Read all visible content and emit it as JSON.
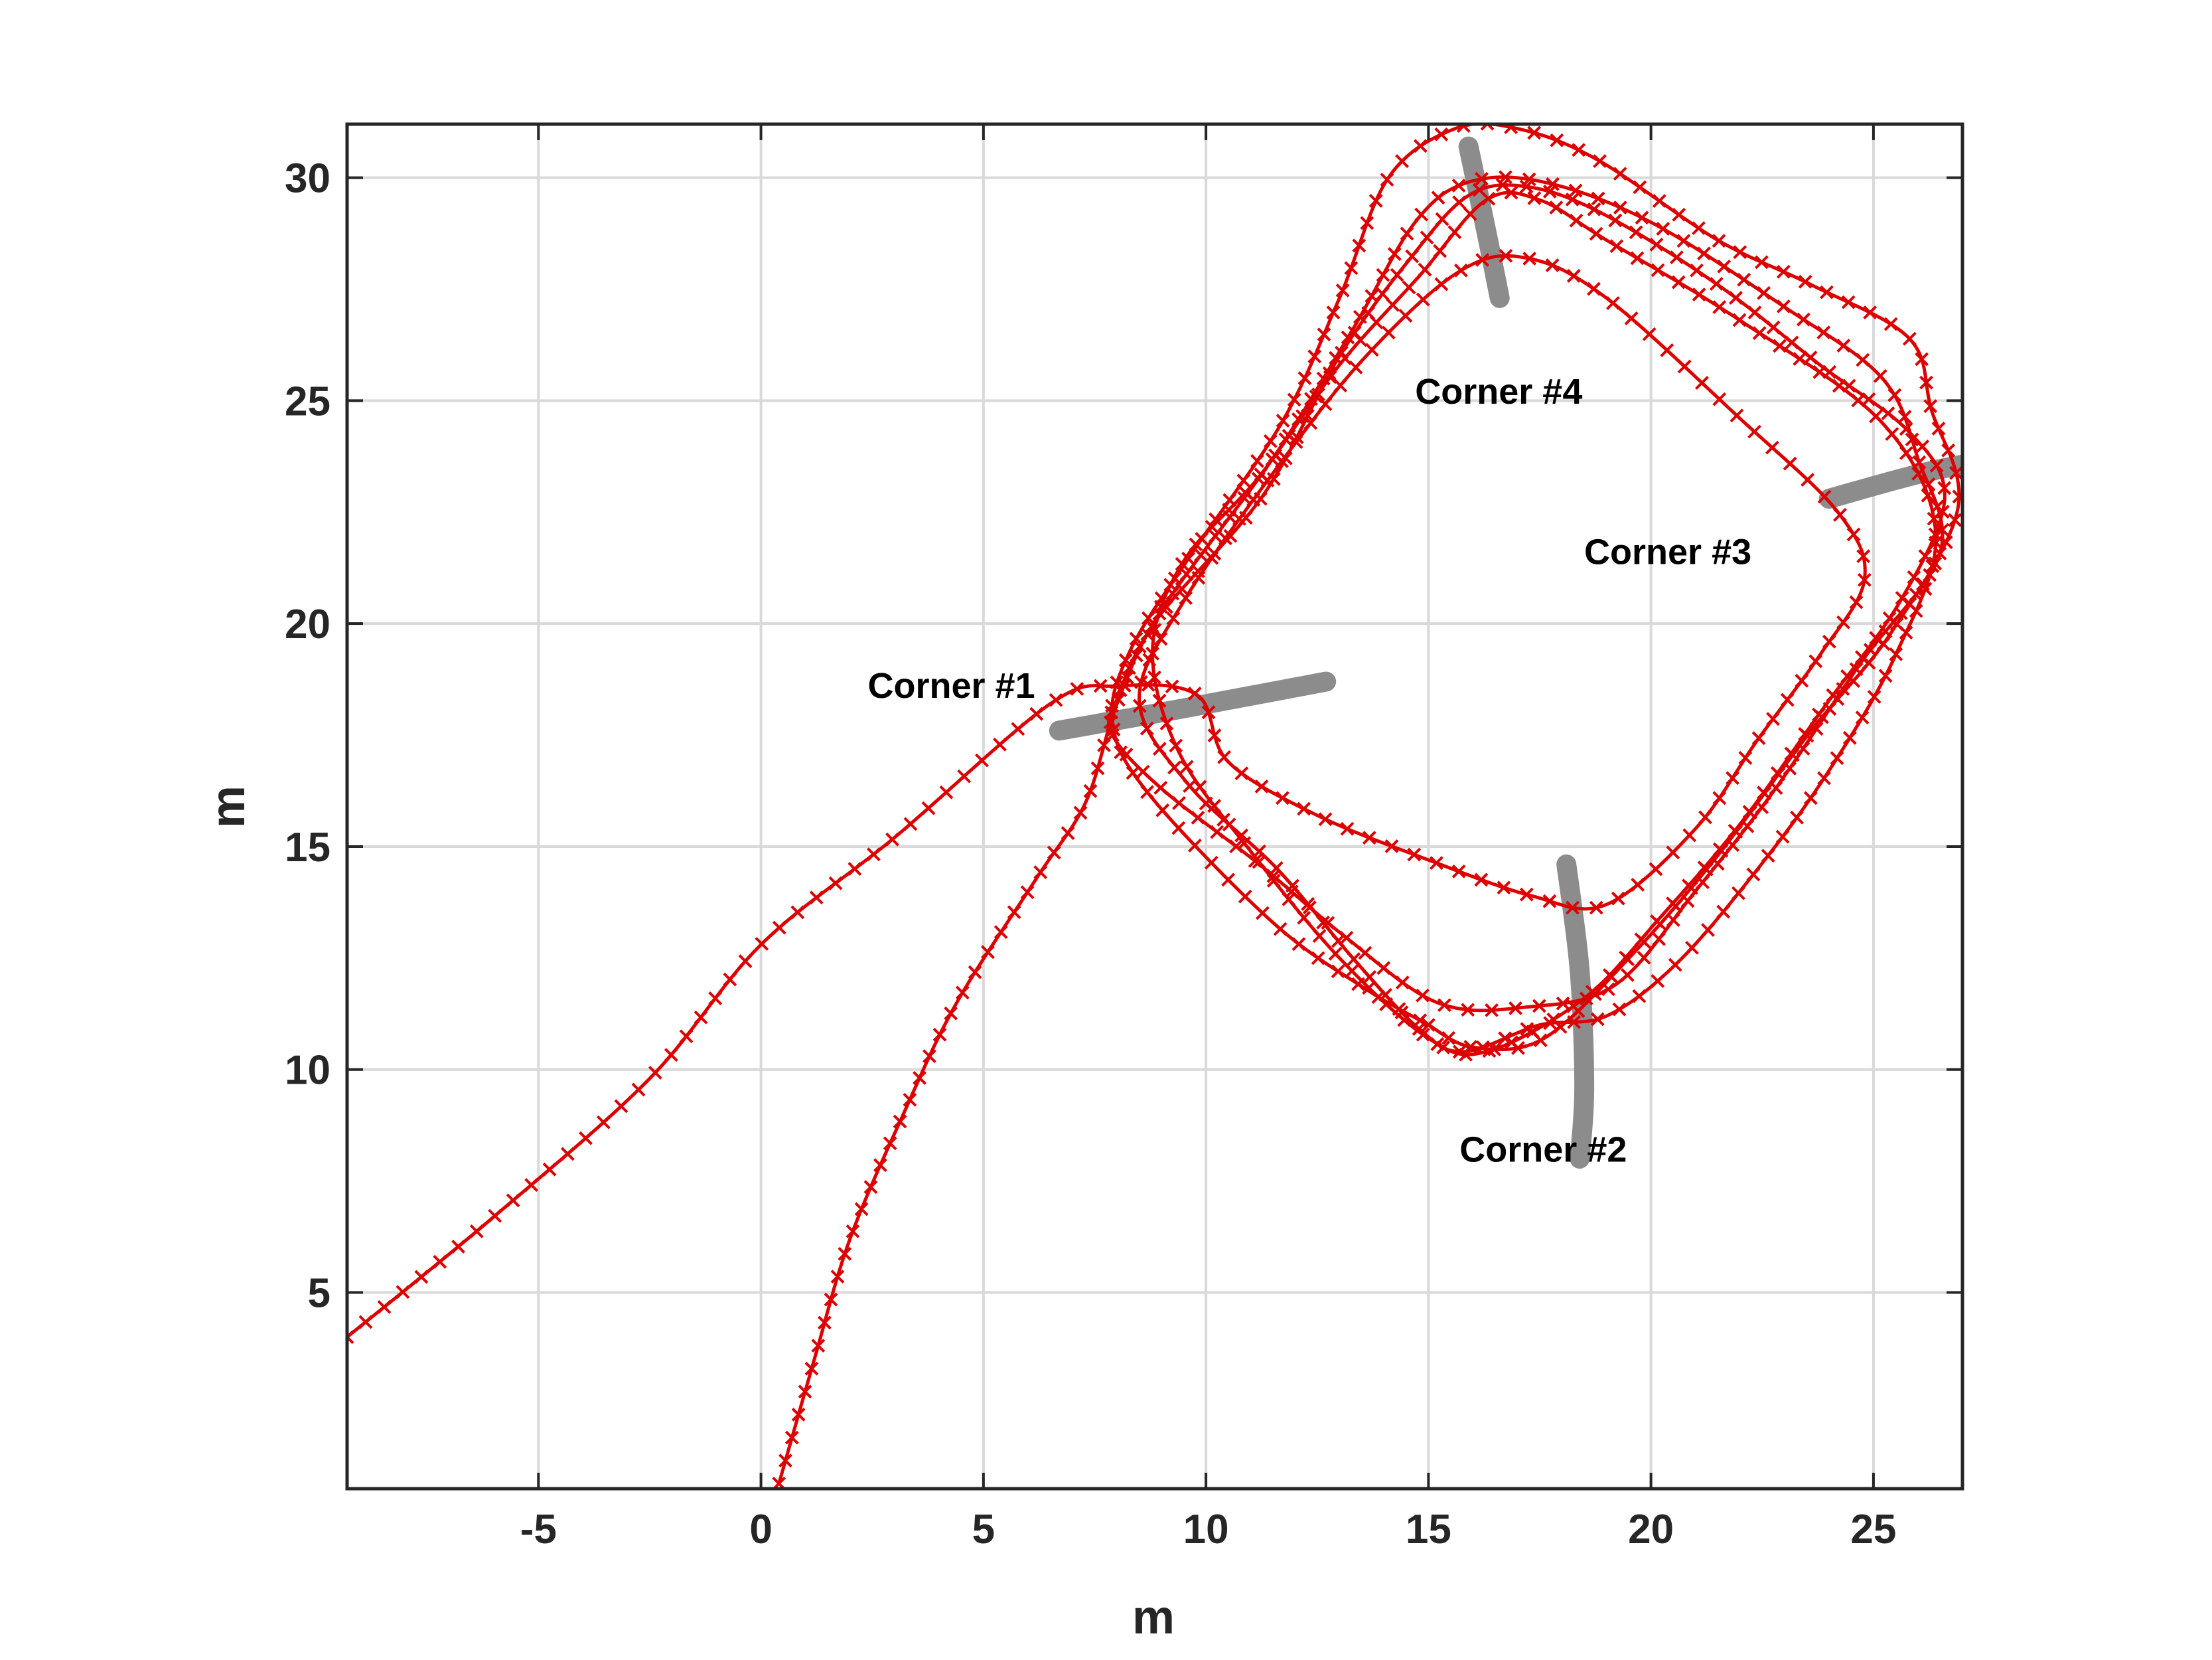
{
  "chart_data": {
    "type": "line",
    "title": "",
    "xlabel": "m",
    "ylabel": "m",
    "xlim": [
      -9.3,
      27
    ],
    "ylim": [
      0.6,
      31.2
    ],
    "xticks": [
      -5,
      0,
      5,
      10,
      15,
      20,
      25
    ],
    "yticks": [
      5,
      10,
      15,
      20,
      25,
      30
    ],
    "grid": true,
    "colors": {
      "trajectory": "#dd0000",
      "boundary": "#8c8c8c",
      "axis": "#262626",
      "grid": "#d9d9d9"
    },
    "series": [
      {
        "marker": "x",
        "points": [
          [
            -9.3,
            4.0
          ],
          [
            -6.0,
            6.7
          ],
          [
            -2.5,
            9.8
          ],
          [
            0.0,
            12.8
          ],
          [
            3.0,
            15.2
          ],
          [
            6.5,
            18.2
          ],
          [
            8.0,
            18.6
          ],
          [
            9.8,
            18.4
          ],
          [
            10.5,
            16.9
          ],
          [
            12.5,
            15.7
          ],
          [
            15.0,
            14.7
          ],
          [
            17.3,
            13.9
          ],
          [
            19.0,
            13.7
          ],
          [
            21.0,
            15.4
          ],
          [
            22.4,
            17.4
          ],
          [
            23.8,
            19.3
          ],
          [
            24.8,
            21.0
          ],
          [
            24.2,
            22.5
          ],
          [
            22.0,
            24.6
          ],
          [
            19.0,
            27.3
          ],
          [
            17.2,
            28.2
          ],
          [
            15.7,
            27.9
          ],
          [
            13.6,
            26.0
          ],
          [
            11.6,
            23.5
          ],
          [
            9.5,
            20.5
          ],
          [
            8.5,
            18.3
          ],
          [
            9.6,
            16.4
          ],
          [
            11.6,
            14.5
          ],
          [
            13.3,
            12.5
          ],
          [
            14.8,
            10.9
          ],
          [
            15.8,
            10.4
          ],
          [
            17.5,
            11.0
          ],
          [
            19.0,
            11.2
          ],
          [
            20.6,
            12.4
          ],
          [
            22.4,
            14.5
          ],
          [
            24.0,
            16.7
          ],
          [
            25.5,
            19.3
          ],
          [
            26.4,
            22.0
          ],
          [
            25.2,
            24.5
          ],
          [
            22.0,
            26.8
          ],
          [
            19.0,
            28.6
          ],
          [
            17.5,
            29.5
          ],
          [
            16.3,
            29.5
          ],
          [
            14.8,
            27.8
          ],
          [
            13.0,
            25.8
          ],
          [
            11.2,
            23.3
          ],
          [
            9.5,
            21.4
          ],
          [
            8.8,
            19.4
          ],
          [
            9.4,
            17.1
          ],
          [
            11.0,
            14.9
          ],
          [
            13.0,
            12.5
          ],
          [
            15.0,
            10.7
          ],
          [
            16.3,
            10.4
          ],
          [
            18.5,
            11.6
          ],
          [
            20.2,
            13.4
          ],
          [
            22.0,
            15.5
          ],
          [
            23.8,
            18.0
          ],
          [
            25.6,
            20.5
          ],
          [
            26.6,
            22.8
          ],
          [
            25.8,
            24.3
          ],
          [
            23.8,
            25.8
          ],
          [
            21.5,
            27.6
          ],
          [
            18.9,
            29.2
          ],
          [
            17.2,
            29.8
          ],
          [
            15.9,
            29.6
          ],
          [
            14.6,
            28.2
          ],
          [
            13.0,
            26.0
          ],
          [
            11.3,
            22.9
          ],
          [
            8.9,
            20.1
          ],
          [
            8.0,
            18.3
          ],
          [
            7.9,
            17.5
          ],
          [
            9.0,
            16.3
          ],
          [
            11.2,
            14.6
          ],
          [
            13.1,
            13.0
          ],
          [
            15.2,
            11.5
          ],
          [
            17.2,
            11.4
          ],
          [
            19.2,
            11.9
          ],
          [
            21.0,
            14.0
          ],
          [
            22.8,
            16.3
          ],
          [
            24.7,
            19.1
          ],
          [
            26.5,
            21.6
          ],
          [
            26.0,
            23.7
          ],
          [
            25.2,
            25.5
          ],
          [
            23.0,
            27.1
          ],
          [
            20.0,
            29.0
          ],
          [
            17.6,
            29.9
          ],
          [
            15.9,
            29.9
          ],
          [
            14.7,
            29.0
          ],
          [
            13.3,
            26.6
          ],
          [
            11.5,
            23.7
          ],
          [
            9.0,
            20.3
          ],
          [
            8.0,
            18.2
          ],
          [
            7.3,
            16.0
          ],
          [
            6.2,
            14.3
          ],
          [
            4.4,
            11.5
          ],
          [
            3.2,
            9.0
          ],
          [
            2.0,
            6.2
          ],
          [
            1.2,
            3.5
          ],
          [
            0.4,
            0.7
          ]
        ]
      },
      {
        "marker": "x",
        "points": [
          [
            15.0,
            11.0
          ],
          [
            16.0,
            10.5
          ],
          [
            17.6,
            10.7
          ],
          [
            19.6,
            12.6
          ],
          [
            21.5,
            14.8
          ],
          [
            23.6,
            17.6
          ],
          [
            25.4,
            19.8
          ],
          [
            26.9,
            22.6
          ],
          [
            26.3,
            24.8
          ],
          [
            25.8,
            26.4
          ],
          [
            23.6,
            27.6
          ],
          [
            21.5,
            28.6
          ],
          [
            18.8,
            30.4
          ],
          [
            17.0,
            31.1
          ],
          [
            15.6,
            31.1
          ],
          [
            14.1,
            30.0
          ],
          [
            13.0,
            27.3
          ],
          [
            11.7,
            24.5
          ],
          [
            9.7,
            21.6
          ],
          [
            8.3,
            19.4
          ],
          [
            7.9,
            17.8
          ],
          [
            8.7,
            16.2
          ],
          [
            11.5,
            13.3
          ],
          [
            13.6,
            11.8
          ],
          [
            15.0,
            11.0
          ]
        ]
      }
    ],
    "boundaries": [
      {
        "name": "Corner #1",
        "points": [
          [
            6.7,
            17.6
          ],
          [
            9.5,
            18.1
          ],
          [
            12.7,
            18.7
          ]
        ]
      },
      {
        "name": "Corner #2",
        "points": [
          [
            18.1,
            14.6
          ],
          [
            18.4,
            12.2
          ],
          [
            18.5,
            9.6
          ],
          [
            18.4,
            8.0
          ]
        ]
      },
      {
        "name": "Corner #3",
        "points": [
          [
            24.0,
            22.8
          ],
          [
            26.2,
            23.4
          ],
          [
            28.3,
            23.8
          ]
        ]
      },
      {
        "name": "Corner #4",
        "points": [
          [
            15.9,
            30.7
          ],
          [
            16.3,
            28.8
          ],
          [
            16.6,
            27.3
          ]
        ]
      }
    ],
    "annotations": [
      {
        "text": "Corner #1",
        "x": 2.4,
        "y": 18.6
      },
      {
        "text": "Corner #2",
        "x": 15.7,
        "y": 8.2
      },
      {
        "text": "Corner #3",
        "x": 18.5,
        "y": 21.6
      },
      {
        "text": "Corner #4",
        "x": 14.7,
        "y": 25.2
      }
    ]
  }
}
